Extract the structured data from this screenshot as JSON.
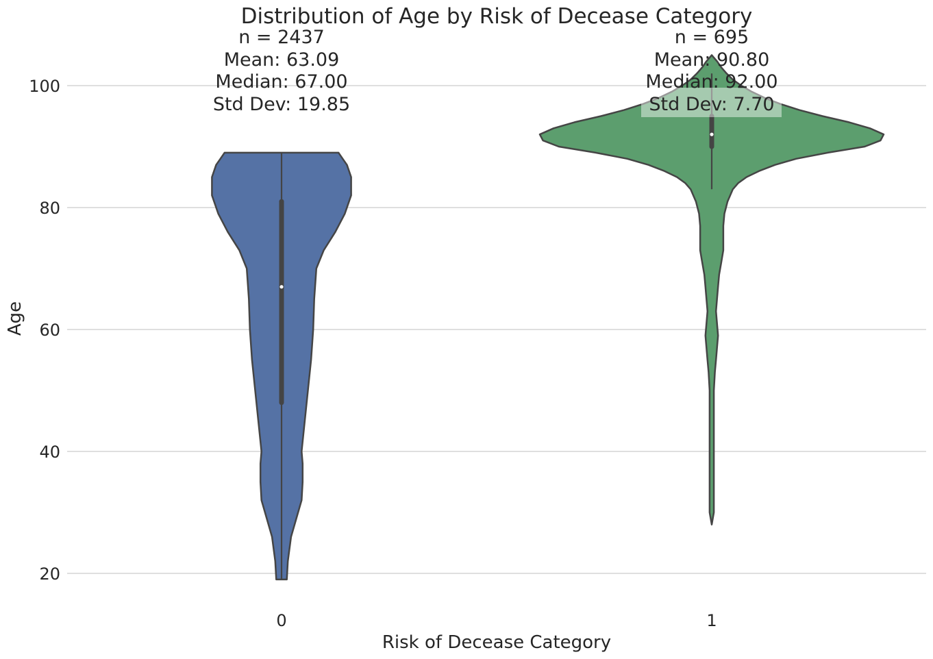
{
  "chart_data": {
    "type": "violin",
    "title": "Distribution of Age by Risk of Decease Category",
    "xlabel": "Risk of Decease Category",
    "ylabel": "Age",
    "ylim": [
      15,
      107
    ],
    "yticks": [
      20,
      40,
      60,
      80,
      100
    ],
    "grid": "horizontal",
    "categories": [
      "0",
      "1"
    ],
    "series": [
      {
        "category": "0",
        "color": "#5572a5",
        "min": 19,
        "max": 89,
        "q1": 48,
        "median": 67,
        "q3": 81,
        "whisker_low": 19,
        "whisker_high": 89,
        "density": [
          [
            19,
            0.05
          ],
          [
            22,
            0.06
          ],
          [
            26,
            0.09
          ],
          [
            29,
            0.14
          ],
          [
            32,
            0.19
          ],
          [
            35,
            0.2
          ],
          [
            38,
            0.2
          ],
          [
            40,
            0.19
          ],
          [
            45,
            0.22
          ],
          [
            50,
            0.25
          ],
          [
            55,
            0.28
          ],
          [
            60,
            0.3
          ],
          [
            65,
            0.31
          ],
          [
            70,
            0.33
          ],
          [
            73,
            0.4
          ],
          [
            76,
            0.51
          ],
          [
            79,
            0.6
          ],
          [
            82,
            0.66
          ],
          [
            85,
            0.66
          ],
          [
            87,
            0.62
          ],
          [
            88,
            0.58
          ],
          [
            89,
            0.54
          ]
        ],
        "annotations": [
          "n = 2437",
          "Mean: 63.09",
          "Median: 67.00",
          "Std Dev: 19.85"
        ]
      },
      {
        "category": "1",
        "color": "#5c9e6e",
        "min": 28,
        "max": 105,
        "q1": 90,
        "median": 92,
        "q3": 95,
        "whisker_low": 83,
        "whisker_high": 102,
        "density": [
          [
            28,
            0.0
          ],
          [
            30,
            0.02
          ],
          [
            35,
            0.02
          ],
          [
            40,
            0.02
          ],
          [
            45,
            0.02
          ],
          [
            50,
            0.02
          ],
          [
            53,
            0.03
          ],
          [
            55,
            0.04
          ],
          [
            57,
            0.05
          ],
          [
            59,
            0.06
          ],
          [
            61,
            0.05
          ],
          [
            63,
            0.04
          ],
          [
            65,
            0.05
          ],
          [
            67,
            0.06
          ],
          [
            69,
            0.07
          ],
          [
            71,
            0.09
          ],
          [
            73,
            0.11
          ],
          [
            75,
            0.11
          ],
          [
            77,
            0.11
          ],
          [
            79,
            0.12
          ],
          [
            81,
            0.15
          ],
          [
            83,
            0.2
          ],
          [
            84,
            0.25
          ],
          [
            85,
            0.33
          ],
          [
            86,
            0.45
          ],
          [
            87,
            0.6
          ],
          [
            88,
            0.8
          ],
          [
            89,
            1.1
          ],
          [
            90,
            1.45
          ],
          [
            91,
            1.6
          ],
          [
            92,
            1.63
          ],
          [
            93,
            1.5
          ],
          [
            94,
            1.3
          ],
          [
            95,
            1.05
          ],
          [
            96,
            0.83
          ],
          [
            97,
            0.65
          ],
          [
            98,
            0.5
          ],
          [
            99,
            0.38
          ],
          [
            100,
            0.28
          ],
          [
            101,
            0.2
          ],
          [
            102,
            0.14
          ],
          [
            103,
            0.09
          ],
          [
            104,
            0.05
          ],
          [
            105,
            0.0
          ]
        ],
        "annotations": [
          "n = 695",
          "Mean: 90.80",
          "Median: 92.00",
          "Std Dev: 7.70"
        ]
      }
    ]
  }
}
